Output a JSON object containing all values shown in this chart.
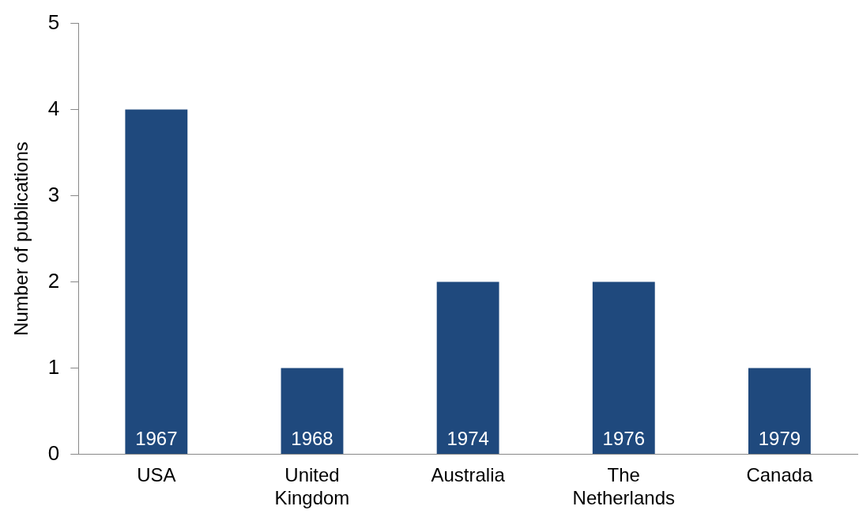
{
  "chart_data": {
    "type": "bar",
    "ylabel": "Number of publications",
    "categories": [
      "USA",
      "United Kingdom",
      "Australia",
      "The Netherlands",
      "Canada"
    ],
    "values": [
      4,
      1,
      2,
      2,
      1
    ],
    "color": "#1f497d",
    "ylim": [
      0,
      5
    ],
    "yticks": [
      0,
      1,
      2,
      3,
      4,
      5
    ],
    "grid": false,
    "legend": false,
    "annotations": [
      {
        "text": "1967",
        "x": "USA",
        "y": 0
      },
      {
        "text": "1968",
        "x": "United Kingdom",
        "y": 0
      },
      {
        "text": "1974",
        "x": "Australia",
        "y": 0
      },
      {
        "text": "1976",
        "x": "The Netherlands",
        "y": 0
      },
      {
        "text": "1979",
        "x": "Canada",
        "y": 0
      }
    ]
  }
}
